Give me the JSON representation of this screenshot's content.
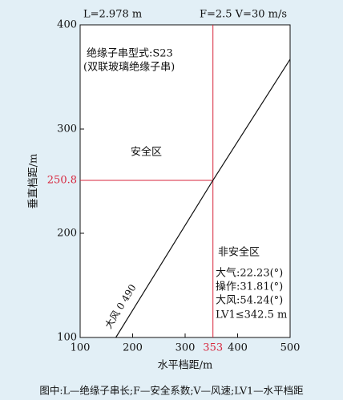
{
  "chart_data": {
    "type": "line",
    "header_left": "L=2.978 m",
    "header_right": "F=2.5  V=30 m/s",
    "x_label": "水平档距/m",
    "y_label": "垂直档距/m",
    "x": [
      168,
      353,
      500
    ],
    "values": [
      100,
      250.8,
      367
    ],
    "color": "#111111",
    "line_label": "大风  0  490",
    "xlim": [
      100,
      500
    ],
    "xticks": [
      100,
      200,
      300,
      400,
      500
    ],
    "ylim": [
      100,
      400
    ],
    "yticks": [
      100,
      200,
      300,
      400
    ],
    "reference": {
      "x": 353,
      "y": 250.8,
      "color": "#d7263d"
    },
    "annotations": [
      "绝缘子串型式:S23",
      "(双联玻璃绝缘子串)",
      "安全区",
      "非安全区",
      "大气:22.23(°)",
      "操作:31.81(°)",
      "大风:54.24(°)",
      "LV1≤342.5 m"
    ],
    "caption": "图中:L—绝缘子串长;F—安全系数;V—风速;LV1—水平档距"
  }
}
